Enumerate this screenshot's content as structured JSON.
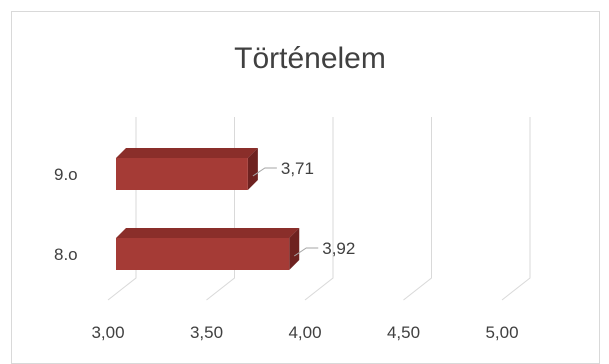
{
  "chart_data": {
    "type": "bar",
    "orientation": "horizontal",
    "style": "3d",
    "title": "Történelem",
    "categories": [
      "9.o",
      "8.o"
    ],
    "values": [
      3.71,
      3.92
    ],
    "value_labels": [
      "3,71",
      "3,92"
    ],
    "x_ticks": [
      "3,00",
      "3,50",
      "4,00",
      "4,50",
      "5,00"
    ],
    "x_tick_values": [
      3.0,
      3.5,
      4.0,
      4.5,
      5.0
    ],
    "xlim": [
      3.0,
      5.0
    ],
    "xlabel": "",
    "ylabel": "",
    "grid": true,
    "legend": "none",
    "colors": {
      "bar_front": "#a53b36",
      "bar_top": "#8a2e2a",
      "bar_side": "#6e2220",
      "grid": "#d9d9d9",
      "text": "#404040"
    }
  }
}
